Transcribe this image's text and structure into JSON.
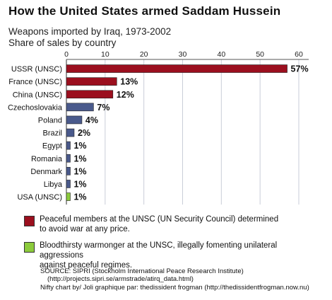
{
  "title": "How the United States armed Saddam Hussein",
  "subtitle_1": "Weapons imported by Iraq, 1973-2002",
  "subtitle_2": "Share of sales by country",
  "chart_data": {
    "type": "bar",
    "orientation": "horizontal",
    "xlim": [
      0,
      60
    ],
    "ticks": [
      0,
      10,
      20,
      30,
      40,
      50,
      60
    ],
    "grid": true,
    "categories": [
      "USSR (UNSC)",
      "France (UNSC)",
      "China (UNSC)",
      "Czechoslovakia",
      "Poland",
      "Brazil",
      "Egypt",
      "Romania",
      "Denmark",
      "Libya",
      "USA (UNSC)"
    ],
    "values": [
      57,
      13,
      12,
      7,
      4,
      2,
      1,
      1,
      1,
      1,
      1
    ],
    "value_labels": [
      "57%",
      "13%",
      "12%",
      "7%",
      "4%",
      "2%",
      "1%",
      "1%",
      "1%",
      "1%",
      "1%"
    ],
    "groups": [
      "unsc",
      "unsc",
      "unsc",
      "other",
      "other",
      "other",
      "other",
      "other",
      "other",
      "other",
      "usa"
    ],
    "colors": {
      "unsc": "#9b0f1e",
      "other": "#4a5a8c",
      "usa": "#8ccb3c"
    }
  },
  "legend": {
    "item1_line1": "Peaceful members at the UNSC (UN Security Council) determined",
    "item1_line2": "to avoid war at any price.",
    "item1_color": "#9b0f1e",
    "item2_line1": "Bloodthirsty warmonger at the UNSC, illegally fomenting unilateral aggressions",
    "item2_line2": "against peaceful regimes.",
    "item2_color": "#8ccb3c"
  },
  "source": {
    "line1": "SOURCE: SIPRI (Stockholm International Peace Research Institute)",
    "line2": "(http://projects.sipri.se/armstrade/atirq_data.html)",
    "line3": "Nifty chart by/ Joli graphique par: thedissident frogman (http://thedissidentfrogman.now.nu)"
  }
}
